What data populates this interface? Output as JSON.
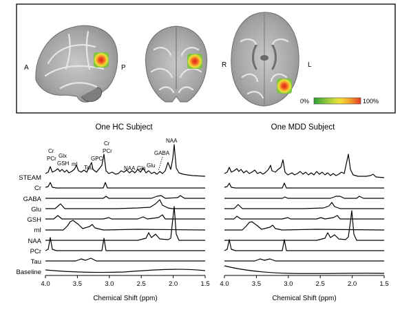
{
  "brain_panel": {
    "orientation_labels": {
      "sagittal_left": "A",
      "sagittal_right": "P",
      "axial_left": "R",
      "axial_right": "L"
    },
    "colorbar": {
      "min_label": "0%",
      "max_label": "100%",
      "colors": [
        "#2e9e3a",
        "#9acb3c",
        "#f2e33a",
        "#f39a2a",
        "#e43a25"
      ]
    }
  },
  "spectra": {
    "metabolites": [
      "STEAM",
      "Cr",
      "GABA",
      "Glu",
      "GSH",
      "mI",
      "NAA",
      "PCr",
      "Tau",
      "Baseline"
    ],
    "left": {
      "title": "One HC Subject",
      "peak_labels": {
        "cr_pcr": "Cr\nPCr",
        "glx_gsh": "Glx\nGSH",
        "mi": "mI",
        "tau": "Tau",
        "gpc": "GPC",
        "cr_pcr_3": "Cr\nPCr",
        "naa_small": "NAA",
        "gln": "Gln",
        "glu": "Glu",
        "gaba": "GABA",
        "naa": "NAA"
      },
      "xaxis": {
        "label": "Chemical Shift (ppm)",
        "ticks": [
          "4.0",
          "3.5",
          "3.0",
          "2.5",
          "2.0",
          "1.5"
        ]
      }
    },
    "right": {
      "title": "One MDD Subject",
      "xaxis": {
        "label": "Chemical Shift (ppm)",
        "ticks": [
          "4.0",
          "3.5",
          "3.0",
          "2.5",
          "2.0",
          "1.5"
        ]
      }
    }
  }
}
